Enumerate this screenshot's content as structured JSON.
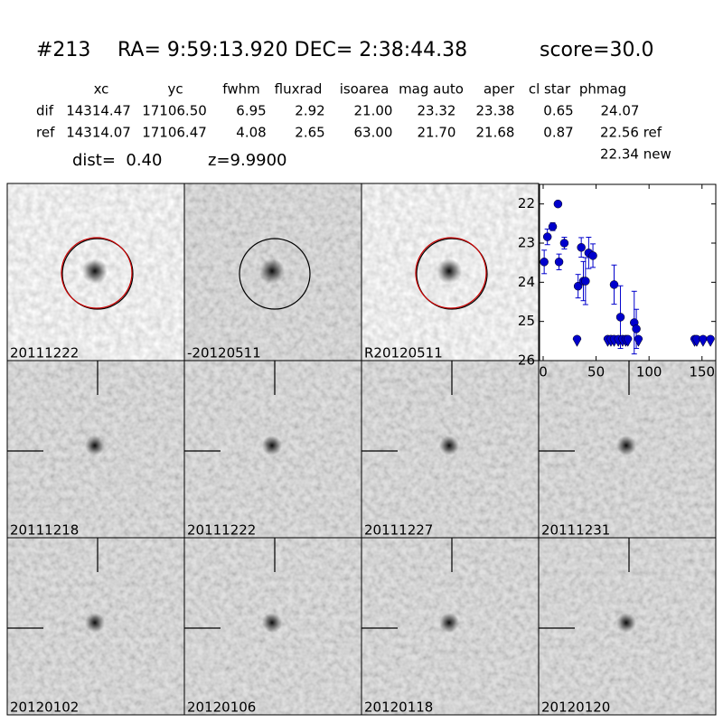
{
  "header": {
    "id": "#213",
    "coords": "RA= 9:59:13.920 DEC= 2:38:44.38",
    "score": "score=30.0"
  },
  "table": {
    "columns": [
      "xc",
      "yc",
      "fwhm",
      "fluxrad",
      "isoarea",
      "mag auto",
      "aper",
      "cl star",
      "phmag"
    ],
    "rows": [
      {
        "label": "dif",
        "cells": [
          "14314.47",
          "17106.50",
          "6.95",
          "2.92",
          "21.00",
          "23.32",
          "23.38",
          "0.65",
          "24.07"
        ]
      },
      {
        "label": "ref",
        "cells": [
          "14314.07",
          "17106.47",
          "4.08",
          "2.65",
          "63.00",
          "21.70",
          "21.68",
          "0.87",
          "22.56 ref"
        ]
      }
    ],
    "note": "22.34 new"
  },
  "dist": "dist=  0.40",
  "z": "z=9.9900",
  "panels": [
    {
      "label": "20111222",
      "label_color": "#000000"
    },
    {
      "label": "-20120511",
      "label_color": "#000000"
    },
    {
      "label": "R20120511",
      "label_color": "#000000"
    },
    {
      "label": "20111218",
      "label_color": "#000000"
    },
    {
      "label": "20111222",
      "label_color": "#ff0000"
    },
    {
      "label": "20111227",
      "label_color": "#000000"
    },
    {
      "label": "20111231",
      "label_color": "#000000"
    },
    {
      "label": "20120102",
      "label_color": "#000000"
    },
    {
      "label": "20120106",
      "label_color": "#000000"
    },
    {
      "label": "20120118",
      "label_color": "#000000"
    },
    {
      "label": "20120120",
      "label_color": "#000000"
    }
  ],
  "chart_data": {
    "type": "scatter",
    "y_inverted": true,
    "xlim": [
      -3.4,
      163
    ],
    "ylim": [
      21.5,
      26
    ],
    "xticks": [
      0,
      50,
      100,
      150
    ],
    "yticks": [
      22,
      23,
      24,
      25,
      26
    ],
    "series": [
      {
        "color": "#0000cc",
        "marker": "circle",
        "x": [
          1,
          4,
          9,
          14,
          15,
          20,
          33,
          36,
          38,
          40,
          43,
          47,
          67,
          73,
          86,
          88
        ],
        "values": [
          23.48,
          22.84,
          22.58,
          22.0,
          23.48,
          23.0,
          24.1,
          23.11,
          23.97,
          23.97,
          23.25,
          23.32,
          24.06,
          24.89,
          25.03,
          25.19
        ],
        "errors": [
          0.3,
          0.2,
          0.1,
          0.05,
          0.2,
          0.15,
          0.3,
          0.25,
          0.5,
          0.6,
          0.4,
          0.3,
          0.5,
          0.8,
          0.8,
          0.5
        ]
      },
      {
        "color": "#0000cc",
        "marker": "limit",
        "x": [
          32,
          61,
          64,
          67,
          71,
          75,
          78,
          80,
          90,
          143,
          145,
          151,
          158
        ],
        "values": [
          25.5,
          25.5,
          25.5,
          25.5,
          25.5,
          25.5,
          25.5,
          25.5,
          25.5,
          25.5,
          25.5,
          25.5,
          25.5
        ]
      }
    ]
  }
}
